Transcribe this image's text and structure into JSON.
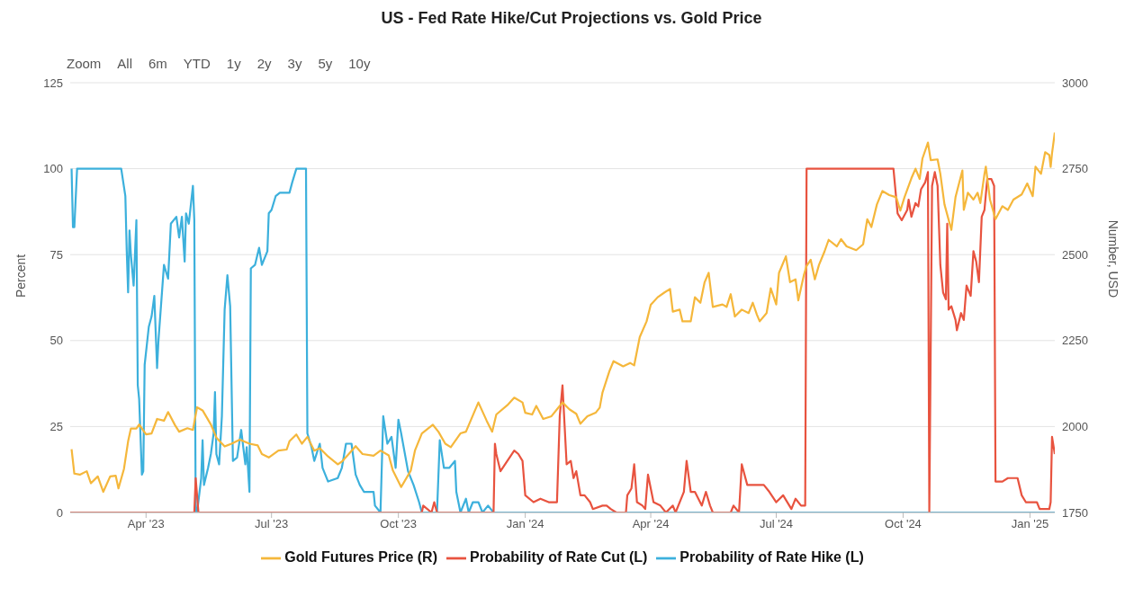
{
  "chart_data": {
    "type": "line",
    "title": "US - Fed Rate Hike/Cut Projections vs. Gold Price",
    "ylabel": "Percent",
    "y2label": "Number, USD",
    "annotations": [
      "Zoom",
      "All",
      "6m",
      "YTD",
      "1y",
      "2y",
      "3y",
      "5y",
      "10y"
    ],
    "xlim": [
      "2023-02-05",
      "2025-01-19"
    ],
    "xticks": [
      {
        "value": "2023-04-01",
        "label": "Apr '23"
      },
      {
        "value": "2023-07-01",
        "label": "Jul '23"
      },
      {
        "value": "2023-10-01",
        "label": "Oct '23"
      },
      {
        "value": "2024-01-01",
        "label": "Jan '24"
      },
      {
        "value": "2024-04-01",
        "label": "Apr '24"
      },
      {
        "value": "2024-07-01",
        "label": "Jul '24"
      },
      {
        "value": "2024-10-01",
        "label": "Oct '24"
      },
      {
        "value": "2025-01-01",
        "label": "Jan '25"
      }
    ],
    "ylim": [
      0,
      125
    ],
    "yticks": [
      0,
      25,
      50,
      75,
      100,
      125
    ],
    "y2lim": [
      1750,
      3000
    ],
    "y2ticks": [
      1750,
      2000,
      2250,
      2500,
      2750,
      3000
    ],
    "grid": "y",
    "legend": "bottom",
    "series": [
      {
        "name": "Probability of Rate Hike (L)",
        "color": "#3cb0dc",
        "x": [
          "2023-02-06",
          "2023-02-07",
          "2023-02-08",
          "2023-02-10",
          "2023-03-14",
          "2023-03-17",
          "2023-03-18",
          "2023-03-19",
          "2023-03-20",
          "2023-03-21",
          "2023-03-23",
          "2023-03-25",
          "2023-03-26",
          "2023-03-27",
          "2023-03-29",
          "2023-03-30",
          "2023-03-31",
          "2023-04-03",
          "2023-04-05",
          "2023-04-07",
          "2023-04-09",
          "2023-04-10",
          "2023-04-14",
          "2023-04-17",
          "2023-04-19",
          "2023-04-23",
          "2023-04-25",
          "2023-04-27",
          "2023-04-29",
          "2023-04-30",
          "2023-05-02",
          "2023-05-05",
          "2023-05-06",
          "2023-05-07",
          "2023-05-08",
          "2023-05-11",
          "2023-05-12",
          "2023-05-13",
          "2023-05-16",
          "2023-05-18",
          "2023-05-20",
          "2023-05-21",
          "2023-05-22",
          "2023-05-24",
          "2023-05-26",
          "2023-05-28",
          "2023-05-30",
          "2023-06-01",
          "2023-06-03",
          "2023-06-06",
          "2023-06-09",
          "2023-06-12",
          "2023-06-13",
          "2023-06-15",
          "2023-06-16",
          "2023-06-19",
          "2023-06-22",
          "2023-06-24",
          "2023-06-28",
          "2023-06-29",
          "2023-07-01",
          "2023-07-04",
          "2023-07-07",
          "2023-07-14",
          "2023-07-16",
          "2023-07-19",
          "2023-07-26",
          "2023-07-27",
          "2023-07-30",
          "2023-08-01",
          "2023-08-05",
          "2023-08-07",
          "2023-08-11",
          "2023-08-18",
          "2023-08-21",
          "2023-08-24",
          "2023-08-28",
          "2023-08-31",
          "2023-09-03",
          "2023-09-06",
          "2023-09-13",
          "2023-09-14",
          "2023-09-18",
          "2023-09-20",
          "2023-09-23",
          "2023-09-26",
          "2023-09-29",
          "2023-10-01",
          "2023-10-03",
          "2023-10-08",
          "2023-10-12",
          "2023-10-16",
          "2023-10-18",
          "2023-10-29",
          "2023-10-31",
          "2023-11-03",
          "2023-11-07",
          "2023-11-11",
          "2023-11-12",
          "2023-11-15",
          "2023-11-19",
          "2023-11-21",
          "2023-11-24",
          "2023-11-28",
          "2023-12-01",
          "2023-12-05",
          "2023-12-09",
          "2025-01-19"
        ],
        "values": [
          100,
          83,
          83,
          100,
          100,
          92,
          76,
          64,
          82,
          75,
          66,
          85,
          37,
          33,
          11,
          12,
          43,
          54,
          57,
          63,
          42,
          50,
          72,
          68,
          84,
          86,
          80,
          86,
          73,
          87,
          84,
          95,
          85,
          0,
          0,
          10,
          21,
          8,
          13,
          17,
          23,
          35,
          17,
          14,
          28,
          59,
          69,
          60,
          15,
          16,
          24,
          14,
          19,
          6,
          71,
          72,
          77,
          72,
          76,
          87,
          88,
          92,
          93,
          93,
          96,
          100,
          100,
          23,
          19,
          15,
          20,
          13,
          9,
          10,
          13,
          20,
          20,
          11,
          8,
          6,
          6,
          2,
          0,
          28,
          20,
          22,
          13,
          27,
          23,
          12,
          8,
          3,
          0,
          0,
          21,
          13,
          13,
          15,
          6,
          0,
          4,
          0,
          3,
          3,
          0,
          2,
          0,
          0
        ]
      },
      {
        "name": "Probability of Rate Cut (L)",
        "color": "#e8533f",
        "x": [
          "2023-02-05",
          "2023-05-06",
          "2023-05-07",
          "2023-05-09",
          "2023-10-18",
          "2023-10-19",
          "2023-10-25",
          "2023-10-27",
          "2023-10-29",
          "2023-12-09",
          "2023-12-10",
          "2023-12-11",
          "2023-12-14",
          "2023-12-19",
          "2023-12-24",
          "2023-12-27",
          "2023-12-30",
          "2024-01-01",
          "2024-01-07",
          "2024-01-12",
          "2024-01-18",
          "2024-01-24",
          "2024-01-26",
          "2024-01-28",
          "2024-01-31",
          "2024-02-03",
          "2024-02-05",
          "2024-02-07",
          "2024-02-10",
          "2024-02-13",
          "2024-02-17",
          "2024-02-19",
          "2024-02-26",
          "2024-02-29",
          "2024-03-03",
          "2024-03-07",
          "2024-03-14",
          "2024-03-15",
          "2024-03-18",
          "2024-03-20",
          "2024-03-22",
          "2024-03-26",
          "2024-03-28",
          "2024-03-30",
          "2024-04-03",
          "2024-04-08",
          "2024-04-12",
          "2024-04-17",
          "2024-04-19",
          "2024-04-25",
          "2024-04-27",
          "2024-04-30",
          "2024-05-03",
          "2024-05-08",
          "2024-05-11",
          "2024-05-14",
          "2024-05-16",
          "2024-05-29",
          "2024-05-31",
          "2024-06-04",
          "2024-06-06",
          "2024-06-10",
          "2024-06-22",
          "2024-06-26",
          "2024-07-01",
          "2024-07-06",
          "2024-07-12",
          "2024-07-15",
          "2024-07-19",
          "2024-07-22",
          "2024-07-23",
          "2024-09-24",
          "2024-09-27",
          "2024-09-30",
          "2024-10-04",
          "2024-10-05",
          "2024-10-07",
          "2024-10-10",
          "2024-10-12",
          "2024-10-14",
          "2024-10-17",
          "2024-10-19",
          "2024-10-20",
          "2024-10-22",
          "2024-10-24",
          "2024-10-26",
          "2024-10-28",
          "2024-10-30",
          "2024-11-01",
          "2024-11-02",
          "2024-11-03",
          "2024-11-05",
          "2024-11-08",
          "2024-11-09",
          "2024-11-12",
          "2024-11-14",
          "2024-11-16",
          "2024-11-19",
          "2024-11-21",
          "2024-11-23",
          "2024-11-25",
          "2024-11-27",
          "2024-11-29",
          "2024-12-01",
          "2024-12-04",
          "2024-12-06",
          "2024-12-07",
          "2024-12-12",
          "2024-12-16",
          "2024-12-23",
          "2024-12-26",
          "2024-12-29",
          "2025-01-06",
          "2025-01-08",
          "2025-01-15",
          "2025-01-16",
          "2025-01-17",
          "2025-01-19"
        ],
        "values": [
          0,
          0,
          10,
          0,
          0,
          2,
          0,
          3,
          0,
          0,
          20,
          17,
          12,
          15,
          18,
          17,
          15,
          5,
          3,
          4,
          3,
          3,
          28,
          37,
          14,
          15,
          10,
          12,
          5,
          5,
          3,
          1,
          2,
          2,
          1,
          0,
          0,
          5,
          7,
          14,
          3,
          2,
          1,
          11,
          3,
          2,
          0,
          2,
          0,
          6,
          15,
          6,
          6,
          2,
          6,
          2,
          0,
          0,
          2,
          0,
          14,
          8,
          8,
          6,
          3,
          5,
          1,
          4,
          2,
          2,
          100,
          100,
          87,
          85,
          88,
          91,
          86,
          90,
          89,
          94,
          96,
          99,
          0,
          95,
          99,
          95,
          72,
          64,
          62,
          84,
          59,
          60,
          56,
          53,
          58,
          56,
          66,
          63,
          76,
          73,
          67,
          86,
          88,
          97,
          97,
          95,
          9,
          9,
          10,
          10,
          5,
          3,
          3,
          1,
          1,
          3,
          22,
          17
        ]
      },
      {
        "name": "Gold Futures Price (R)",
        "color": "#f5b73b",
        "axis": "y2",
        "x": [
          "2023-02-06",
          "2023-02-08",
          "2023-02-12",
          "2023-02-17",
          "2023-02-20",
          "2023-02-25",
          "2023-03-01",
          "2023-03-06",
          "2023-03-10",
          "2023-03-12",
          "2023-03-16",
          "2023-03-19",
          "2023-03-21",
          "2023-03-25",
          "2023-03-27",
          "2023-04-01",
          "2023-04-05",
          "2023-04-09",
          "2023-04-14",
          "2023-04-17",
          "2023-04-22",
          "2023-04-25",
          "2023-05-01",
          "2023-05-05",
          "2023-05-08",
          "2023-05-12",
          "2023-05-18",
          "2023-05-22",
          "2023-05-28",
          "2023-06-02",
          "2023-06-08",
          "2023-06-15",
          "2023-06-21",
          "2023-06-24",
          "2023-06-29",
          "2023-07-06",
          "2023-07-12",
          "2023-07-14",
          "2023-07-19",
          "2023-07-23",
          "2023-07-27",
          "2023-08-01",
          "2023-08-05",
          "2023-08-11",
          "2023-08-18",
          "2023-08-21",
          "2023-08-26",
          "2023-08-31",
          "2023-09-05",
          "2023-09-13",
          "2023-09-18",
          "2023-09-24",
          "2023-09-27",
          "2023-10-03",
          "2023-10-10",
          "2023-10-13",
          "2023-10-18",
          "2023-10-26",
          "2023-10-30",
          "2023-11-04",
          "2023-11-08",
          "2023-11-15",
          "2023-11-19",
          "2023-11-25",
          "2023-11-28",
          "2023-12-04",
          "2023-12-08",
          "2023-12-11",
          "2023-12-19",
          "2023-12-24",
          "2023-12-30",
          "2024-01-01",
          "2024-01-06",
          "2024-01-09",
          "2024-01-14",
          "2024-01-20",
          "2024-01-24",
          "2024-01-28",
          "2024-02-02",
          "2024-02-07",
          "2024-02-10",
          "2024-02-15",
          "2024-02-21",
          "2024-02-24",
          "2024-02-26",
          "2024-03-02",
          "2024-03-05",
          "2024-03-12",
          "2024-03-17",
          "2024-03-20",
          "2024-03-24",
          "2024-03-29",
          "2024-04-01",
          "2024-04-06",
          "2024-04-11",
          "2024-04-15",
          "2024-04-17",
          "2024-04-22",
          "2024-04-24",
          "2024-04-30",
          "2024-05-03",
          "2024-05-07",
          "2024-05-10",
          "2024-05-13",
          "2024-05-16",
          "2024-05-23",
          "2024-05-26",
          "2024-05-29",
          "2024-06-01",
          "2024-06-06",
          "2024-06-11",
          "2024-06-14",
          "2024-06-17",
          "2024-06-19",
          "2024-06-24",
          "2024-06-27",
          "2024-07-01",
          "2024-07-03",
          "2024-07-08",
          "2024-07-11",
          "2024-07-15",
          "2024-07-17",
          "2024-07-21",
          "2024-07-23",
          "2024-07-26",
          "2024-07-29",
          "2024-08-01",
          "2024-08-05",
          "2024-08-08",
          "2024-08-14",
          "2024-08-17",
          "2024-08-21",
          "2024-08-28",
          "2024-09-02",
          "2024-09-05",
          "2024-09-08",
          "2024-09-12",
          "2024-09-16",
          "2024-09-21",
          "2024-09-26",
          "2024-09-29",
          "2024-10-02",
          "2024-10-07",
          "2024-10-10",
          "2024-10-13",
          "2024-10-15",
          "2024-10-19",
          "2024-10-21",
          "2024-10-26",
          "2024-10-28",
          "2024-10-31",
          "2024-11-05",
          "2024-11-08",
          "2024-11-13",
          "2024-11-14",
          "2024-11-17",
          "2024-11-21",
          "2024-11-24",
          "2024-11-26",
          "2024-11-29",
          "2024-11-30",
          "2024-12-03",
          "2024-12-07",
          "2024-12-12",
          "2024-12-16",
          "2024-12-20",
          "2024-12-26",
          "2024-12-30",
          "2025-01-03",
          "2025-01-05",
          "2025-01-09",
          "2025-01-12",
          "2025-01-15",
          "2025-01-16",
          "2025-01-17",
          "2025-01-19"
        ],
        "values": [
          1934,
          1863,
          1860,
          1870,
          1835,
          1855,
          1810,
          1855,
          1857,
          1820,
          1877,
          1957,
          1994,
          1994,
          2006,
          1977,
          1980,
          2022,
          2017,
          2042,
          2004,
          1985,
          1995,
          1990,
          2056,
          2047,
          2006,
          1968,
          1942,
          1950,
          1962,
          1950,
          1945,
          1920,
          1910,
          1930,
          1933,
          1957,
          1977,
          1950,
          1970,
          1930,
          1937,
          1913,
          1890,
          1898,
          1920,
          1943,
          1920,
          1915,
          1930,
          1916,
          1872,
          1824,
          1872,
          1930,
          1980,
          2005,
          1985,
          1950,
          1940,
          1980,
          1985,
          2042,
          2070,
          2017,
          1985,
          2035,
          2062,
          2084,
          2070,
          2040,
          2035,
          2060,
          2022,
          2030,
          2050,
          2070,
          2050,
          2037,
          2008,
          2030,
          2040,
          2055,
          2099,
          2161,
          2190,
          2175,
          2185,
          2178,
          2260,
          2306,
          2354,
          2376,
          2390,
          2400,
          2334,
          2340,
          2306,
          2306,
          2376,
          2360,
          2419,
          2447,
          2348,
          2355,
          2348,
          2385,
          2320,
          2340,
          2330,
          2360,
          2325,
          2306,
          2330,
          2402,
          2355,
          2447,
          2495,
          2420,
          2428,
          2367,
          2440,
          2467,
          2485,
          2428,
          2470,
          2509,
          2543,
          2524,
          2545,
          2524,
          2513,
          2530,
          2603,
          2580,
          2646,
          2685,
          2673,
          2667,
          2628,
          2667,
          2722,
          2750,
          2720,
          2779,
          2826,
          2775,
          2777,
          2735,
          2646,
          2572,
          2667,
          2745,
          2630,
          2680,
          2660,
          2680,
          2650,
          2735,
          2756,
          2660,
          2603,
          2641,
          2630,
          2660,
          2675,
          2707,
          2670,
          2756,
          2735,
          2798,
          2790,
          2755,
          2795,
          2855
        ]
      }
    ]
  }
}
